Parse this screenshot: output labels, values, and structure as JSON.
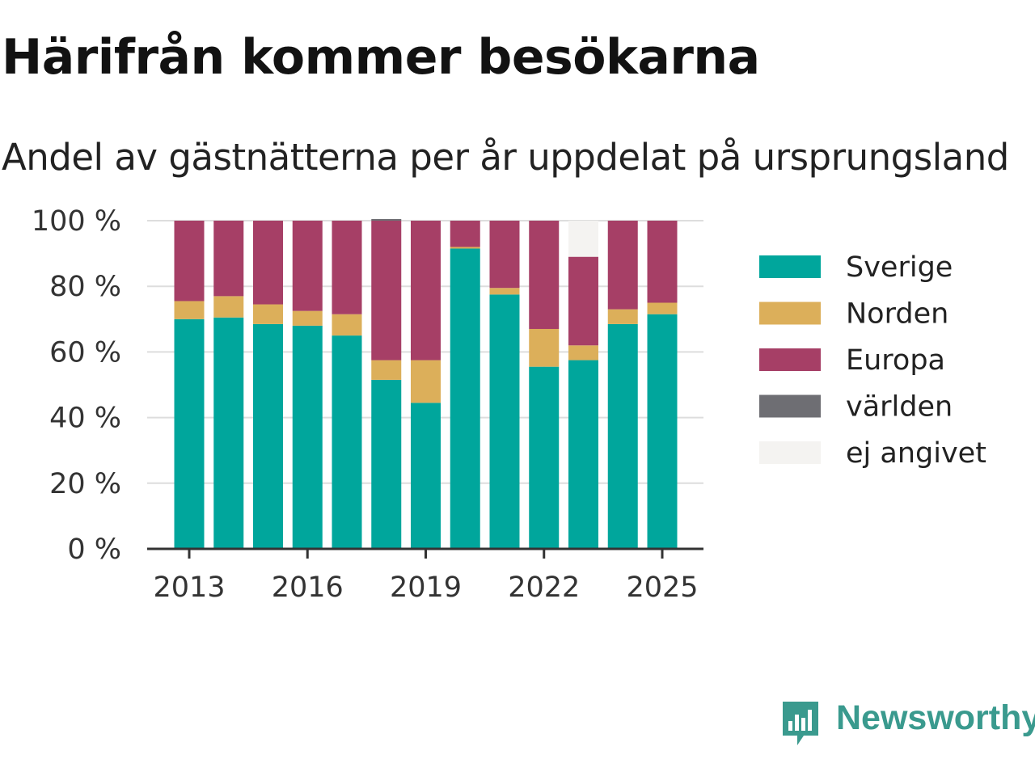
{
  "title": "Härifrån kommer besökarna",
  "subtitle": "Andel av gästnätterna per år uppdelat på ursprungsland",
  "brand": {
    "name": "Newsworthy",
    "color": "#3a9a8e",
    "icon": "newsworthy-logo-icon"
  },
  "chart_data": {
    "type": "bar",
    "stacked": true,
    "title": "Härifrån kommer besökarna",
    "subtitle": "Andel av gästnätterna per år uppdelat på ursprungsland",
    "xlabel": "",
    "ylabel": "",
    "ylim": [
      0,
      100
    ],
    "y_ticks": [
      0,
      20,
      40,
      60,
      80,
      100
    ],
    "y_tick_labels": [
      "0 %",
      "20 %",
      "40 %",
      "60 %",
      "80 %",
      "100 %"
    ],
    "x_tick_labels": [
      "2013",
      "2016",
      "2019",
      "2022",
      "2025"
    ],
    "categories": [
      "2013",
      "2014",
      "2015",
      "2016",
      "2017",
      "2018",
      "2019",
      "2020",
      "2021",
      "2022",
      "2023",
      "2024",
      "2025"
    ],
    "grid": true,
    "legend_position": "right",
    "series": [
      {
        "name": "Sverige",
        "color": "#00a69c",
        "values": [
          70,
          70.5,
          68.5,
          68,
          65,
          51.5,
          44.5,
          91.5,
          77.5,
          55.5,
          57.5,
          68.5,
          71.5
        ]
      },
      {
        "name": "Norden",
        "color": "#dcaf5a",
        "values": [
          5.5,
          6.5,
          6,
          4.5,
          6.5,
          6,
          13,
          0.5,
          2,
          11.5,
          4.5,
          4.5,
          3.5
        ]
      },
      {
        "name": "Europa",
        "color": "#a63f66",
        "values": [
          24.5,
          23,
          25.5,
          27.5,
          28.5,
          42.5,
          42.5,
          8,
          20.5,
          33,
          27,
          27,
          25
        ]
      },
      {
        "name": "världen",
        "color": "#6e6e73",
        "values": [
          0,
          0,
          0,
          0,
          0,
          0.5,
          0,
          0,
          0,
          0,
          0,
          0,
          0
        ]
      },
      {
        "name": "ej angivet",
        "color": "#f4f3f1",
        "values": [
          0,
          0,
          0,
          0,
          0,
          0,
          0,
          0,
          0,
          0,
          11,
          0,
          0
        ]
      }
    ]
  }
}
